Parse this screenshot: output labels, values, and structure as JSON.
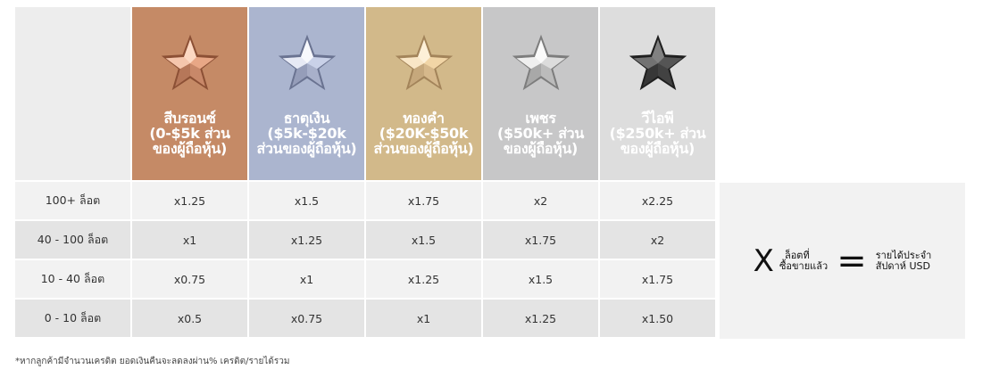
{
  "tiers": [
    {
      "name": "สีบรอนซ์",
      "range": "(0-$5k ส่วนของผู้ถือหุ้น)",
      "bg": "#c58a66",
      "star_fill": "#e8a786",
      "star_light": "#ffe0cc",
      "star_dark": "#8c5035",
      "icon": "bronze-star-icon"
    },
    {
      "name": "ธาตุเงิน",
      "range": "($5k-$20k ส่วนของผู้ถือหุ้น)",
      "bg": "#abb5cf",
      "star_fill": "#c9d1e8",
      "star_light": "#ffffff",
      "star_dark": "#6a7391",
      "icon": "silver-star-icon"
    },
    {
      "name": "ทองคำ",
      "range": "($20K-$50k ส่วนของผู้ถือหุ้น)",
      "bg": "#d2b98a",
      "star_fill": "#f1d5a6",
      "star_light": "#fff4e0",
      "star_dark": "#a3845a",
      "icon": "gold-star-icon"
    },
    {
      "name": "เพชร",
      "range": "($50k+ ส่วนของผู้ถือหุ้น)",
      "bg": "#c7c7c8",
      "star_fill": "#dcdcdc",
      "star_light": "#ffffff",
      "star_dark": "#7d7d7d",
      "icon": "diamond-star-icon"
    },
    {
      "name": "วีไอพี",
      "range": "($250k+ ส่วนของผู้ถือหุ้น)",
      "bg": "#dddddd",
      "star_fill": "#555555",
      "star_light": "#8a8a8a",
      "star_dark": "#1f1f1f",
      "icon": "vip-star-icon"
    }
  ],
  "rows": [
    {
      "label": "100+ ล็อต",
      "values": [
        "x1.25",
        "x1.5",
        "x1.75",
        "x2",
        "x2.25"
      ]
    },
    {
      "label": "40 - 100 ล็อต",
      "values": [
        "x1",
        "x1.25",
        "x1.5",
        "x1.75",
        "x2"
      ]
    },
    {
      "label": "10 - 40 ล็อต",
      "values": [
        "x0.75",
        "x1",
        "x1.25",
        "x1.5",
        "x1.75"
      ]
    },
    {
      "label": "0 - 10 ล็อต",
      "values": [
        "x0.5",
        "x0.75",
        "x1",
        "x1.25",
        "x1.50"
      ]
    }
  ],
  "formula": {
    "multiply_symbol": "X",
    "lots_line1": "ล็อตที่",
    "lots_line2": "ซื้อขายแล้ว",
    "equals_symbol": "=",
    "result_line1": "รายได้ประจำ",
    "result_line2": "สัปดาห์ USD"
  },
  "footnote": "*หากลูกค้ามีจำนวนเครดิต ยอดเงินคืนจะลดลงผ่าน% เครดิต/รายได้รวม"
}
